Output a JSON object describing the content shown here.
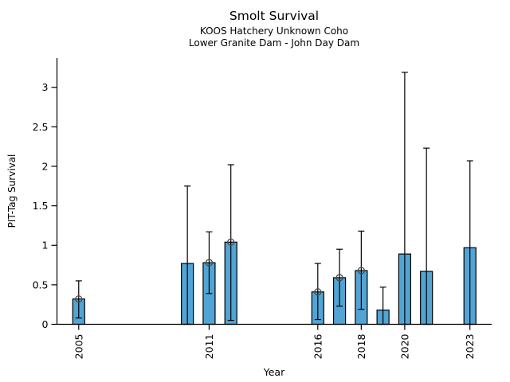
{
  "chart_data": {
    "type": "bar",
    "title": "Smolt Survival",
    "subtitle_lines": [
      "KOOS Hatchery Unknown Coho",
      "Lower Granite Dam - John Day Dam"
    ],
    "xlabel": "Year",
    "ylabel": "PIT-Tag Survival",
    "x_ticks": [
      2005,
      2011,
      2016,
      2018,
      2020,
      2023
    ],
    "y_ticks": [
      0,
      0.5,
      1,
      1.5,
      2,
      2.5,
      3
    ],
    "xlim": [
      2004,
      2024
    ],
    "ylim": [
      0,
      3.37
    ],
    "grid": false,
    "legend": null,
    "bar_width_years": 0.55,
    "colors": {
      "bar_fill": "#52a4d4",
      "bar_edge": "#000000",
      "errorbar": "#000000",
      "marker_edge": "#4a4a4a",
      "axis": "#000000",
      "text": "#000000",
      "background": "#ffffff"
    },
    "series": [
      {
        "name": "PIT-Tag Survival",
        "points": [
          {
            "year": 2005,
            "value": 0.32,
            "ci_low": 0.08,
            "ci_high": 0.55,
            "marker": true
          },
          {
            "year": 2010,
            "value": 0.77,
            "ci_low": 0.0,
            "ci_high": 1.75,
            "marker": false
          },
          {
            "year": 2011,
            "value": 0.78,
            "ci_low": 0.39,
            "ci_high": 1.17,
            "marker": true
          },
          {
            "year": 2012,
            "value": 1.04,
            "ci_low": 0.05,
            "ci_high": 2.02,
            "marker": true
          },
          {
            "year": 2016,
            "value": 0.41,
            "ci_low": 0.06,
            "ci_high": 0.77,
            "marker": true
          },
          {
            "year": 2017,
            "value": 0.59,
            "ci_low": 0.23,
            "ci_high": 0.95,
            "marker": true
          },
          {
            "year": 2018,
            "value": 0.68,
            "ci_low": 0.19,
            "ci_high": 1.18,
            "marker": true
          },
          {
            "year": 2019,
            "value": 0.18,
            "ci_low": 0.0,
            "ci_high": 0.47,
            "marker": false
          },
          {
            "year": 2020,
            "value": 0.89,
            "ci_low": 0.0,
            "ci_high": 3.19,
            "marker": false
          },
          {
            "year": 2021,
            "value": 0.67,
            "ci_low": 0.0,
            "ci_high": 2.23,
            "marker": false
          },
          {
            "year": 2023,
            "value": 0.97,
            "ci_low": 0.0,
            "ci_high": 2.07,
            "marker": false
          }
        ]
      }
    ]
  }
}
